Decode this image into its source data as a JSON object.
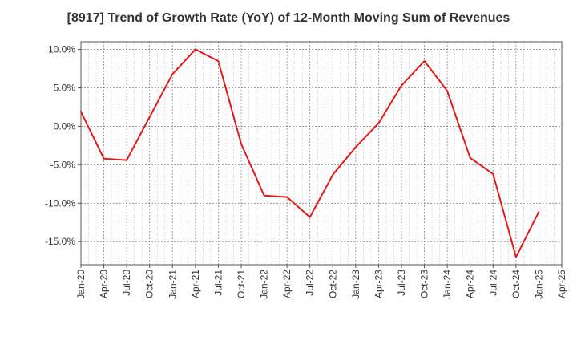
{
  "chart_data": {
    "type": "line",
    "title": "[8917]  Trend of Growth Rate (YoY) of 12-Month Moving Sum of Revenues",
    "xlabel": "",
    "ylabel": "",
    "x_ticks": [
      "Jan-20",
      "Apr-20",
      "Jul-20",
      "Oct-20",
      "Jan-21",
      "Apr-21",
      "Jul-21",
      "Oct-21",
      "Jan-22",
      "Apr-22",
      "Jul-22",
      "Oct-22",
      "Jan-23",
      "Apr-23",
      "Jul-23",
      "Oct-23",
      "Jan-24",
      "Apr-24",
      "Jul-24",
      "Oct-24",
      "Jan-25",
      "Apr-25"
    ],
    "y_ticks": [
      10,
      5,
      0,
      -5,
      -10,
      -15
    ],
    "y_tick_labels": [
      "10.0%",
      "5.0%",
      "0.0%",
      "-5.0%",
      "-10.0%",
      "-15.0%"
    ],
    "ylim": [
      -18,
      11
    ],
    "grid": true,
    "series": [
      {
        "color": "#e31a1c",
        "x": [
          "Jan-20",
          "Apr-20",
          "Jul-20",
          "Oct-20",
          "Jan-21",
          "Apr-21",
          "Jul-21",
          "Oct-21",
          "Jan-22",
          "Apr-22",
          "Jul-22",
          "Oct-22",
          "Jan-23",
          "Apr-23",
          "Jul-23",
          "Oct-23",
          "Jan-24",
          "Apr-24",
          "Jul-24",
          "Oct-24",
          "Jan-25"
        ],
        "values": [
          1.9,
          -4.2,
          -4.4,
          1.2,
          6.8,
          10.0,
          8.5,
          -2.3,
          -9.0,
          -9.2,
          -11.8,
          -6.3,
          -2.7,
          0.4,
          5.3,
          8.5,
          4.6,
          -4.1,
          -6.2,
          -17.0,
          -11.1
        ]
      }
    ]
  }
}
